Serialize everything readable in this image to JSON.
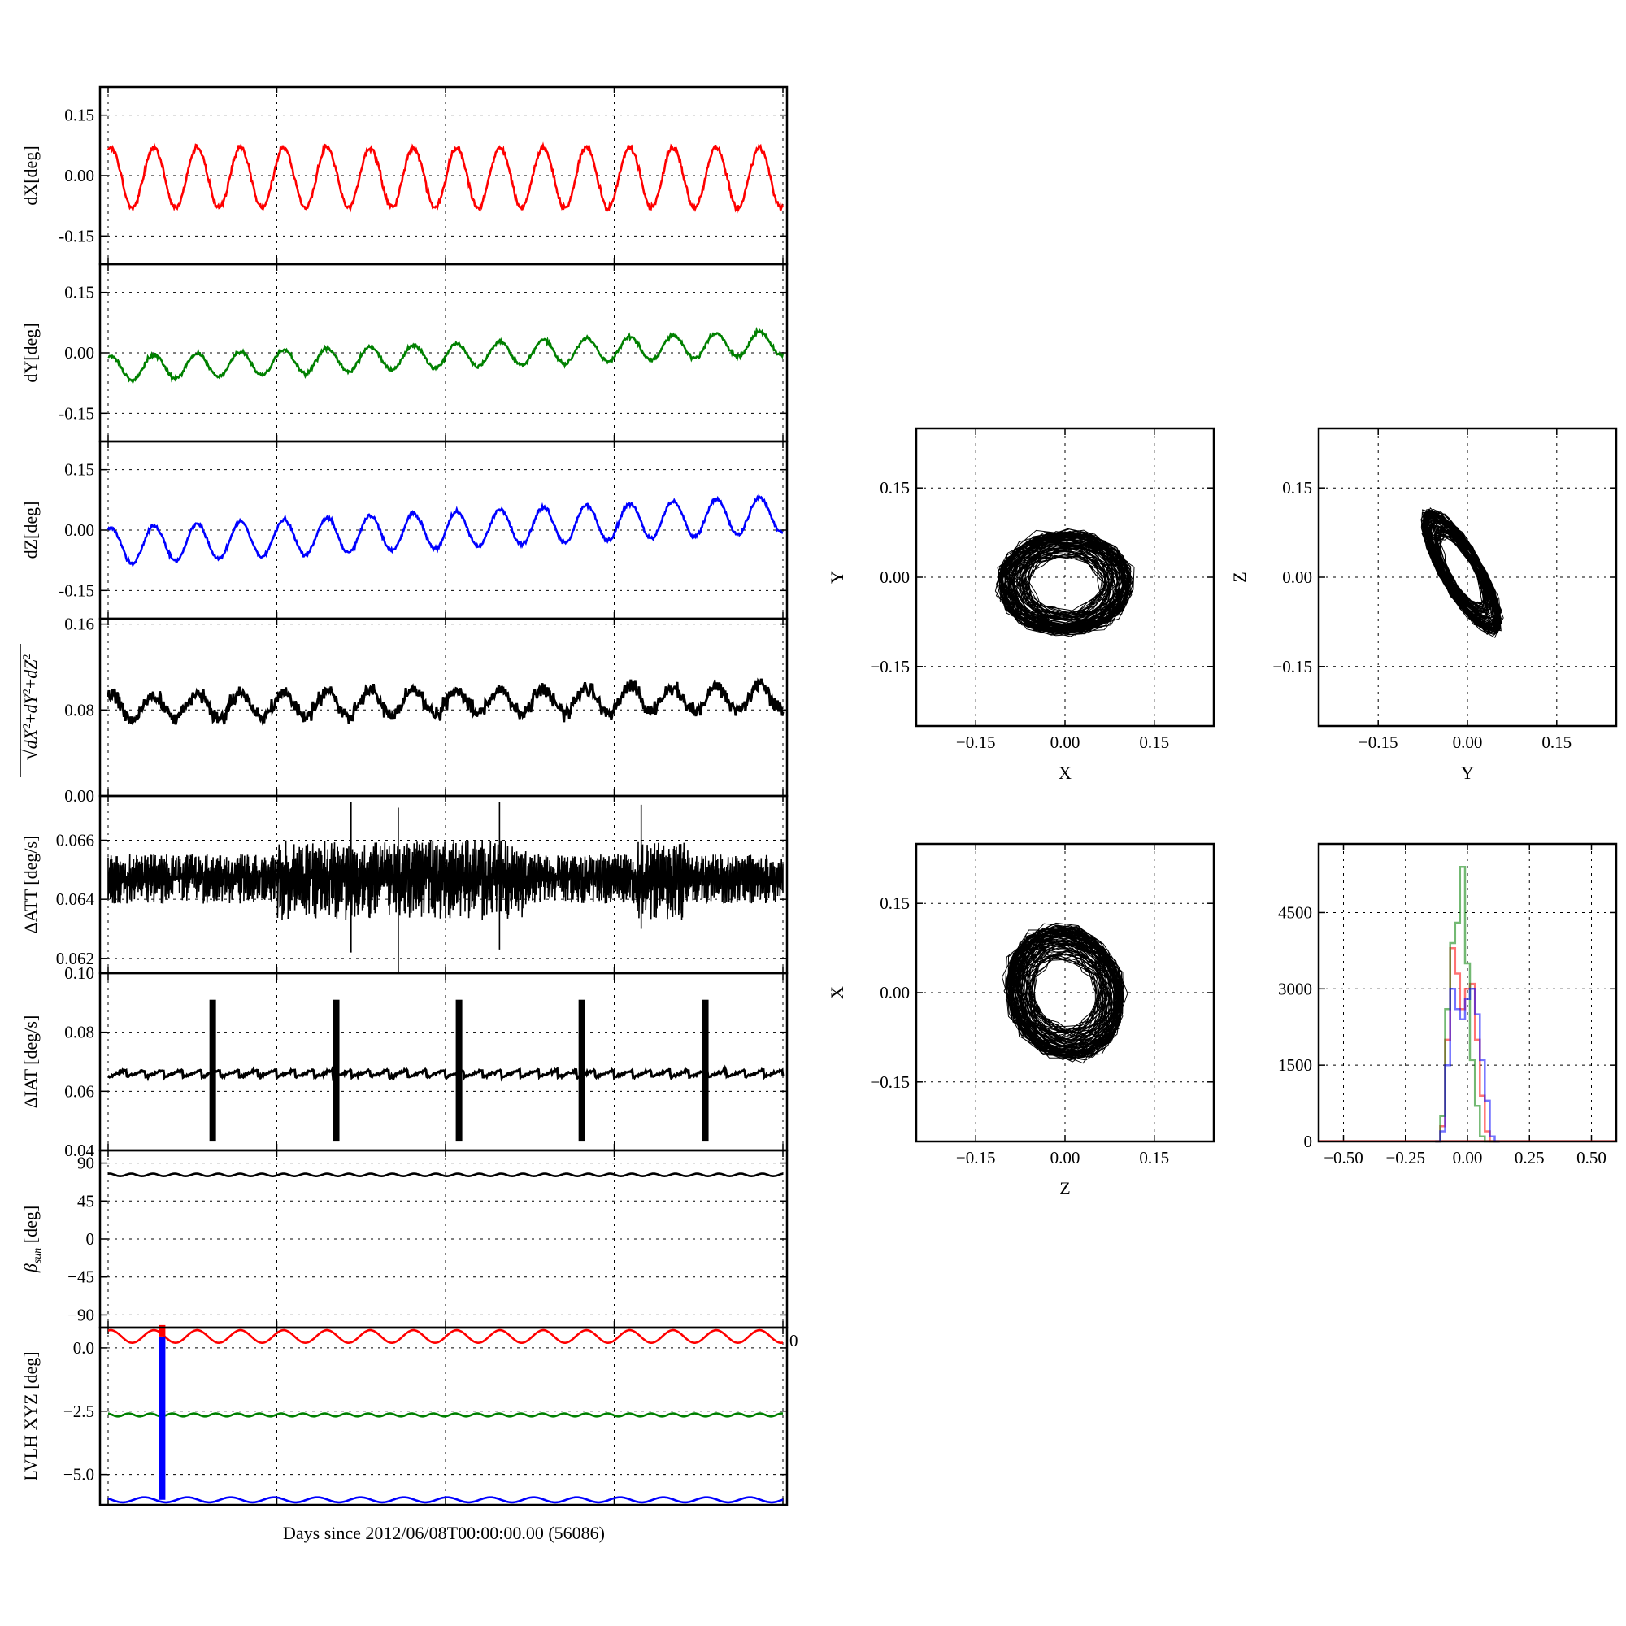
{
  "figure": {
    "xlabel": "Days since 2012/06/08T00:00:00.00 (56086)",
    "stray_tick": "0"
  },
  "chart_data": [
    {
      "id": "dX",
      "type": "line",
      "ylabel": "dX[deg]",
      "ylim": [
        -0.22,
        0.22
      ],
      "yticks": [
        "0.15",
        "0.00",
        "-0.15"
      ],
      "ytick_values": [
        0.15,
        0.0,
        -0.15
      ],
      "xgrid_fractions": [
        0,
        0.25,
        0.5,
        0.75,
        1
      ],
      "series": [
        {
          "color": "#ff0000",
          "cycles": 15.6,
          "mean": -0.005,
          "amp": 0.075,
          "trend": 0.0,
          "noise": 0.012
        }
      ]
    },
    {
      "id": "dY",
      "type": "line",
      "ylabel": "dY[deg]",
      "ylim": [
        -0.22,
        0.22
      ],
      "yticks": [
        "0.15",
        "0.00",
        "-0.15"
      ],
      "ytick_values": [
        0.15,
        0.0,
        -0.15
      ],
      "xgrid_fractions": [
        0,
        0.25,
        0.5,
        0.75,
        1
      ],
      "series": [
        {
          "color": "#008000",
          "cycles": 15.6,
          "mean": -0.04,
          "amp": 0.03,
          "trend": 0.065,
          "noise": 0.008
        }
      ]
    },
    {
      "id": "dZ",
      "type": "line",
      "ylabel": "dZ[deg]",
      "ylim": [
        -0.22,
        0.22
      ],
      "yticks": [
        "0.15",
        "0.00",
        "-0.15"
      ],
      "ytick_values": [
        0.15,
        0.0,
        -0.15
      ],
      "xgrid_fractions": [
        0,
        0.25,
        0.5,
        0.75,
        1
      ],
      "series": [
        {
          "color": "#0000ff",
          "cycles": 15.6,
          "mean": -0.04,
          "amp": 0.045,
          "trend": 0.08,
          "noise": 0.008
        }
      ]
    },
    {
      "id": "dR",
      "type": "line",
      "ylabel": "sqrt(dX^2+dY^2+dZ^2)",
      "ylim": [
        0.0,
        0.165
      ],
      "yticks": [
        "0.16",
        "0.08",
        "0.00"
      ],
      "ytick_values": [
        0.16,
        0.08,
        0.0
      ],
      "xgrid_fractions": [
        0,
        0.25,
        0.5,
        0.75,
        1
      ],
      "series": [
        {
          "color": "#000000",
          "cycles": 15.6,
          "mean": 0.082,
          "amp": 0.012,
          "trend": 0.01,
          "noise": 0.012
        }
      ]
    },
    {
      "id": "dATT",
      "type": "line",
      "ylabel": "ΔATT [deg/s]",
      "ylim": [
        0.0615,
        0.0675
      ],
      "yticks": [
        "0.066",
        "0.064",
        "0.062"
      ],
      "ytick_values": [
        0.066,
        0.064,
        0.062
      ],
      "xgrid_fractions": [
        0,
        0.25,
        0.5,
        0.75,
        1
      ],
      "series": [
        {
          "color": "#000000",
          "mean": 0.06475,
          "spread_low": 0.0009,
          "spread_high": 0.0013
        }
      ]
    },
    {
      "id": "dIAT",
      "type": "line",
      "ylabel": "ΔIAT [deg/s]",
      "ylim": [
        0.04,
        0.1
      ],
      "yticks": [
        "0.10",
        "0.08",
        "0.06",
        "0.04"
      ],
      "ytick_values": [
        0.1,
        0.08,
        0.06,
        0.04
      ],
      "xgrid_fractions": [
        0,
        0.25,
        0.5,
        0.75,
        1
      ],
      "series": [
        {
          "color": "#000000",
          "mean": 0.0648,
          "spike_x": [
            0.155,
            0.338,
            0.52,
            0.702,
            0.885
          ],
          "spike_low": 0.043,
          "spike_high": 0.091
        }
      ]
    },
    {
      "id": "beta",
      "type": "line",
      "ylabel": "β_sun [deg]",
      "ylim": [
        -105,
        105
      ],
      "yticks": [
        "90",
        "45",
        "0",
        "−45",
        "−90"
      ],
      "ytick_values": [
        90,
        45,
        0,
        -45,
        -90
      ],
      "xgrid_fractions": [
        0,
        0.25,
        0.5,
        0.75,
        1
      ],
      "series": [
        {
          "color": "#000000",
          "cycles": 31,
          "mean": 76,
          "amp": 1.5
        }
      ]
    },
    {
      "id": "lvlh",
      "type": "line",
      "ylabel": "LVLH XYZ [deg]",
      "ylim": [
        -6.2,
        0.8
      ],
      "yticks": [
        "0.0",
        "−2.5",
        "−5.0"
      ],
      "ytick_values": [
        0.0,
        -2.5,
        -5.0
      ],
      "xgrid_fractions": [
        0,
        0.25,
        0.5,
        0.75,
        1
      ],
      "series": [
        {
          "color": "#ff0000",
          "cycles": 15.6,
          "mean": 0.45,
          "amp": 0.25
        },
        {
          "color": "#008000",
          "cycles": 31,
          "mean": -2.65,
          "amp": 0.06
        },
        {
          "color": "#0000ff",
          "cycles": 15.6,
          "mean": -6.0,
          "amp": 0.1
        }
      ],
      "spike": {
        "color": "#0000ff",
        "x_fraction": 0.08,
        "from": -6.0,
        "to": 0.45
      }
    },
    {
      "id": "xy",
      "type": "scatter",
      "xlabel": "X",
      "ylabel": "Y",
      "xlim": [
        -0.25,
        0.25
      ],
      "ylim": [
        -0.25,
        0.25
      ],
      "xticks": [
        "−0.15",
        "0.00",
        "0.15"
      ],
      "yticks": [
        "0.15",
        "0.00",
        "−0.15"
      ],
      "tick_values": [
        -0.15,
        0.0,
        0.15
      ],
      "cloud": {
        "cx": 0.0,
        "cy": -0.01,
        "rx": 0.11,
        "ry": 0.085,
        "tilt": 0.0
      }
    },
    {
      "id": "yz",
      "type": "scatter",
      "xlabel": "Y",
      "ylabel": "Z",
      "xlim": [
        -0.25,
        0.25
      ],
      "ylim": [
        -0.25,
        0.25
      ],
      "xticks": [
        "−0.15",
        "0.00",
        "0.15"
      ],
      "yticks": [
        "0.15",
        "0.00",
        "−0.15"
      ],
      "tick_values": [
        -0.15,
        0.0,
        0.15
      ],
      "cloud": {
        "cx": -0.01,
        "cy": 0.01,
        "rx": 0.115,
        "ry": 0.035,
        "tilt": -1.05
      }
    },
    {
      "id": "zx",
      "type": "scatter",
      "xlabel": "Z",
      "ylabel": "X",
      "xlim": [
        -0.25,
        0.25
      ],
      "ylim": [
        -0.25,
        0.25
      ],
      "xticks": [
        "−0.15",
        "0.00",
        "0.15"
      ],
      "yticks": [
        "0.15",
        "0.00",
        "−0.15"
      ],
      "tick_values": [
        -0.15,
        0.0,
        0.15
      ],
      "cloud": {
        "cx": 0.0,
        "cy": 0.0,
        "rx": 0.095,
        "ry": 0.11,
        "tilt": 0.35
      }
    },
    {
      "id": "hist",
      "type": "line",
      "xlim": [
        -0.6,
        0.6
      ],
      "ylim": [
        0,
        5850
      ],
      "xticks": [
        "−0.50",
        "−0.25",
        "0.00",
        "0.25",
        "0.50"
      ],
      "xtick_values": [
        -0.5,
        -0.25,
        0.0,
        0.25,
        0.5
      ],
      "yticks": [
        "4500",
        "3000",
        "1500",
        "0"
      ],
      "ytick_values": [
        4500,
        3000,
        1500,
        0
      ],
      "series": [
        {
          "color": "#ff0000",
          "x": [
            -0.12,
            -0.1,
            -0.08,
            -0.06,
            -0.04,
            -0.02,
            0.0,
            0.02,
            0.04,
            0.06,
            0.08,
            0.1,
            0.12
          ],
          "values": [
            0,
            300,
            2000,
            3800,
            3300,
            2600,
            3000,
            3100,
            2000,
            900,
            200,
            0,
            0
          ]
        },
        {
          "color": "#008000",
          "x": [
            -0.12,
            -0.1,
            -0.08,
            -0.06,
            -0.04,
            -0.02,
            0.0,
            0.02,
            0.04,
            0.06,
            0.08,
            0.1,
            0.12
          ],
          "values": [
            0,
            500,
            2600,
            3900,
            4300,
            5400,
            3500,
            1600,
            700,
            100,
            0,
            0,
            0
          ]
        },
        {
          "color": "#0000ff",
          "x": [
            -0.12,
            -0.1,
            -0.08,
            -0.06,
            -0.04,
            -0.02,
            0.0,
            0.02,
            0.04,
            0.06,
            0.08,
            0.1,
            0.12
          ],
          "values": [
            0,
            200,
            1500,
            3000,
            2600,
            2400,
            2800,
            3000,
            2500,
            1600,
            800,
            100,
            0
          ]
        }
      ]
    }
  ]
}
